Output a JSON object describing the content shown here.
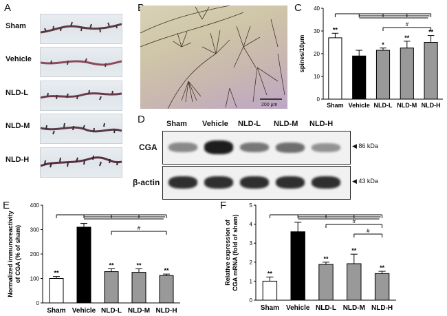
{
  "panels": {
    "a": "A",
    "b": "B",
    "c": "C",
    "d": "D",
    "e": "E",
    "f": "F"
  },
  "panel_a": {
    "rows": [
      "Sham",
      "Vehicle",
      "NLD-L",
      "NLD-M",
      "NLD-H"
    ]
  },
  "panel_b": {
    "scale_bar": "200 μm"
  },
  "panel_d": {
    "lanes": [
      "Sham",
      "Vehicle",
      "NLD-L",
      "NLD-M",
      "NLD-H"
    ],
    "rows": [
      {
        "label": "CGA",
        "size": "86 kDa",
        "intensity": [
          0.35,
          0.95,
          0.45,
          0.5,
          0.3
        ]
      },
      {
        "label": "β-actin",
        "size": "43 kDa",
        "intensity": [
          0.85,
          0.85,
          0.85,
          0.85,
          0.85
        ]
      }
    ]
  },
  "colors": {
    "white": "#ffffff",
    "black": "#000000",
    "gray": "#999999"
  },
  "chart_data": [
    {
      "id": "C",
      "type": "bar",
      "categories": [
        "Sham",
        "Vehicle",
        "NLD-L",
        "NLD-M",
        "NLD-H"
      ],
      "values": [
        27,
        19,
        21.5,
        22.5,
        25
      ],
      "errors": [
        2,
        2.5,
        1,
        3,
        3
      ],
      "bar_colors": [
        "white",
        "black",
        "gray",
        "gray",
        "gray"
      ],
      "ylabel": "spines/10μm",
      "ylim": [
        0,
        40
      ],
      "yticks": [
        0,
        10,
        20,
        30,
        40
      ],
      "annotations": [
        "**",
        "",
        "*",
        "**",
        "**"
      ],
      "brackets": [
        {
          "from": 1,
          "to": [
            0,
            2,
            3,
            4
          ],
          "label": ""
        },
        {
          "from": 2,
          "to": [
            4
          ],
          "label": "#"
        }
      ]
    },
    {
      "id": "E",
      "type": "bar",
      "categories": [
        "Sham",
        "Vehicle",
        "NLD-L",
        "NLD-M",
        "NLD-H"
      ],
      "values": [
        100,
        310,
        128,
        125,
        112
      ],
      "errors": [
        8,
        15,
        12,
        15,
        6
      ],
      "bar_colors": [
        "white",
        "black",
        "gray",
        "gray",
        "gray"
      ],
      "ylabel": "Normalized immunoreactivity of CGA (% of sham)",
      "ylim": [
        0,
        400
      ],
      "yticks": [
        0,
        100,
        200,
        300,
        400
      ],
      "annotations": [
        "**",
        "",
        "**",
        "**",
        "**"
      ],
      "brackets": [
        {
          "from": 1,
          "to": [
            0,
            2,
            3,
            4
          ],
          "label": ""
        },
        {
          "from": 2,
          "to": [
            4
          ],
          "label": "#"
        }
      ]
    },
    {
      "id": "F",
      "type": "bar",
      "categories": [
        "Sham",
        "Vehicle",
        "NLD-L",
        "NLD-M",
        "NLD-H"
      ],
      "values": [
        1.0,
        3.6,
        1.88,
        1.92,
        1.4
      ],
      "errors": [
        0.22,
        0.5,
        0.12,
        0.5,
        0.12
      ],
      "bar_colors": [
        "white",
        "black",
        "gray",
        "gray",
        "gray"
      ],
      "ylabel": "Relative expression of CGA mRNA (fold of sham)",
      "ylim": [
        0,
        5
      ],
      "yticks": [
        0,
        1,
        2,
        3,
        4,
        5
      ],
      "annotations": [
        "**",
        "",
        "**",
        "**",
        "**"
      ],
      "brackets": [
        {
          "from": 1,
          "to": [
            0,
            2,
            3,
            4
          ],
          "label": ""
        },
        {
          "from": 2,
          "to": [
            4
          ],
          "label": "#"
        },
        {
          "from": 3,
          "to": [
            4
          ],
          "label": "#"
        }
      ]
    }
  ]
}
